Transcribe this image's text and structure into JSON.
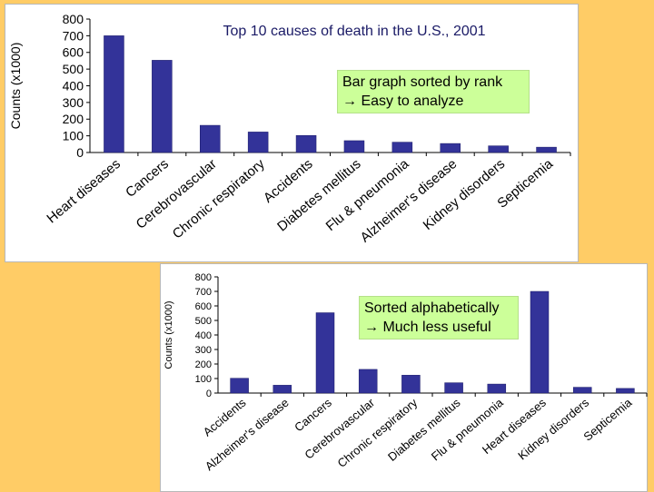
{
  "colors": {
    "background": "#ffcc66",
    "bar": "#333399",
    "note": "#ccff99",
    "title": "#1a1a66"
  },
  "chart_data": [
    {
      "type": "bar",
      "title": "Top 10 causes of death in the U.S., 2001",
      "xlabel": "",
      "ylabel": "Counts (x1000)",
      "ylim": [
        0,
        800
      ],
      "yticks": [
        "0",
        "100",
        "200",
        "300",
        "400",
        "500",
        "600",
        "700",
        "800"
      ],
      "grid": false,
      "categories": [
        "Heart diseases",
        "Cancers",
        "Cerebrovascular",
        "Chronic respiratory",
        "Accidents",
        "Diabetes mellitus",
        "Flu & pneumonia",
        "Alzheimer's disease",
        "Kidney disorders",
        "Septicemia"
      ],
      "values": [
        700,
        553,
        163,
        123,
        102,
        71,
        62,
        54,
        40,
        32
      ]
    },
    {
      "type": "bar",
      "title": "",
      "xlabel": "",
      "ylabel": "Counts (x1000)",
      "ylim": [
        0,
        800
      ],
      "yticks": [
        "0",
        "100",
        "200",
        "300",
        "400",
        "500",
        "600",
        "700",
        "800"
      ],
      "grid": false,
      "categories": [
        "Accidents",
        "Alzheimer's disease",
        "Cancers",
        "Cerebrovascular",
        "Chronic respiratory",
        "Diabetes mellitus",
        "Flu & pneumonia",
        "Heart diseases",
        "Kidney disorders",
        "Septicemia"
      ],
      "values": [
        102,
        54,
        553,
        163,
        123,
        71,
        62,
        700,
        40,
        32
      ]
    }
  ],
  "notes": {
    "top": {
      "line1": "Bar graph sorted by rank",
      "line2": "Easy to analyze"
    },
    "bottom": {
      "line1": "Sorted alphabetically",
      "line2": "Much less useful"
    }
  }
}
